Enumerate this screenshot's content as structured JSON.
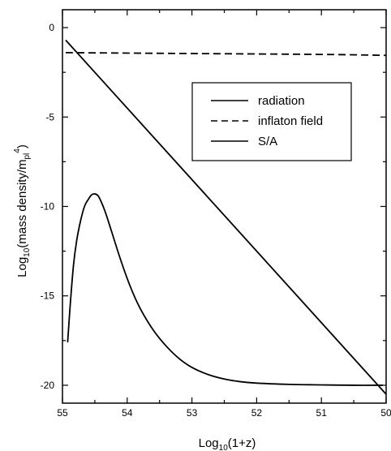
{
  "chart_data": {
    "type": "line",
    "xlabel": {
      "base": "Log",
      "sub": "10",
      "rest": "(1+z)"
    },
    "ylabel": {
      "base": "Log",
      "sub": "10",
      "mid": "(mass density/m",
      "sub2": "pl",
      "sup": "4",
      "end": ")"
    },
    "xlim": [
      55,
      50
    ],
    "ylim": [
      -21,
      1
    ],
    "x_ticks": [
      55,
      54,
      53,
      52,
      51,
      50
    ],
    "x_tick_labels": [
      "55",
      "54",
      "53",
      "52",
      "51",
      "50"
    ],
    "y_ticks": [
      0,
      -5,
      -10,
      -15,
      -20
    ],
    "y_tick_labels": [
      "0",
      "-5",
      "-10",
      "-15",
      "-20"
    ],
    "legend_position": "upper-right",
    "series": [
      {
        "name": "radiation",
        "style": "solid",
        "x": [
          54.95,
          50.0
        ],
        "y": [
          -0.7,
          -20.5
        ]
      },
      {
        "name": "inflaton field",
        "style": "dashed",
        "x": [
          54.95,
          53.0,
          51.0,
          50.0
        ],
        "y": [
          -1.4,
          -1.45,
          -1.5,
          -1.55
        ]
      },
      {
        "name": "S/A",
        "style": "solid",
        "x": [
          54.92,
          54.88,
          54.83,
          54.78,
          54.72,
          54.66,
          54.6,
          54.55,
          54.5,
          54.45,
          54.4,
          54.33,
          54.25,
          54.1,
          53.95,
          53.8,
          53.6,
          53.4,
          53.2,
          53.0,
          52.75,
          52.5,
          52.25,
          52.0,
          51.5,
          51.0,
          50.5,
          50.05
        ],
        "y": [
          -17.6,
          -15.5,
          -13.3,
          -11.9,
          -10.8,
          -10.0,
          -9.6,
          -9.35,
          -9.3,
          -9.4,
          -9.75,
          -10.4,
          -11.3,
          -13.0,
          -14.5,
          -15.7,
          -16.9,
          -17.8,
          -18.5,
          -19.0,
          -19.4,
          -19.65,
          -19.8,
          -19.88,
          -19.95,
          -19.98,
          -20.0,
          -20.0
        ]
      }
    ]
  }
}
